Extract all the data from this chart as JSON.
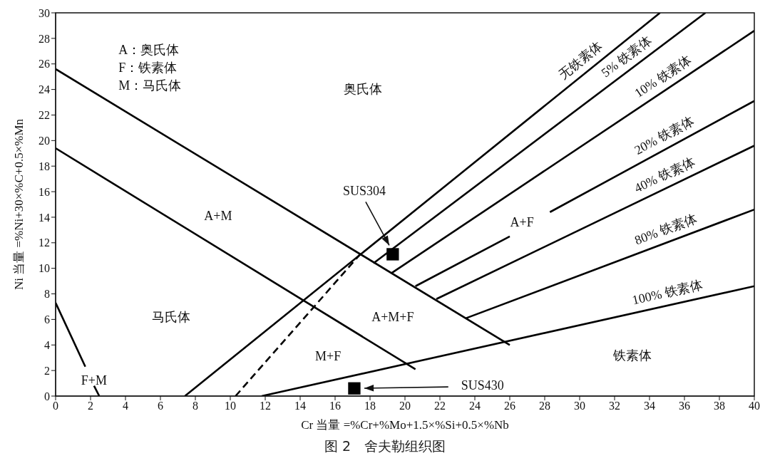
{
  "chart_data": {
    "type": "line",
    "title": "图 2　舍夫勒组织图",
    "xlabel": "Cr 当量 =%Cr+%Mo+1.5×%Si+0.5×%Nb",
    "ylabel": "Ni 当量 =%Ni+30×%C+0.5×%Mn",
    "xlim": [
      0,
      40
    ],
    "ylim": [
      0,
      30
    ],
    "xticks": [
      0,
      2,
      4,
      6,
      8,
      10,
      12,
      14,
      16,
      18,
      20,
      22,
      24,
      26,
      28,
      30,
      32,
      34,
      36,
      38,
      40
    ],
    "yticks": [
      0,
      2,
      4,
      6,
      8,
      10,
      12,
      14,
      16,
      18,
      20,
      22,
      24,
      26,
      28,
      30
    ],
    "series": [
      {
        "color": "#000000",
        "x": [
          0,
          26
        ],
        "values": [
          25.6,
          4
        ]
      },
      {
        "color": "#000000",
        "x": [
          0,
          20.6
        ],
        "values": [
          19.4,
          2.1
        ]
      },
      {
        "color": "#000000",
        "x": [
          0,
          1.7,
          2.0,
          2.2,
          2.5
        ],
        "values": [
          7.3,
          2.3,
          null,
          0.8,
          0
        ]
      },
      {
        "name": "无铁素体",
        "color": "#000000",
        "x": [
          7.4,
          34.6
        ],
        "values": [
          0,
          30
        ]
      },
      {
        "color": "#000000",
        "line_style": "dashed",
        "x": [
          10.3,
          17.5
        ],
        "values": [
          0,
          11.2
        ]
      },
      {
        "name": "5% 铁素体",
        "color": "#000000",
        "x": [
          18.2,
          37.2
        ],
        "values": [
          10.4,
          30
        ]
      },
      {
        "name": "10% 铁素体",
        "color": "#000000",
        "x": [
          19.2,
          40
        ],
        "values": [
          9.6,
          28.6
        ]
      },
      {
        "name": "20% 铁素体",
        "color": "#000000",
        "x": [
          20.6,
          26.0,
          27.2,
          28.3,
          40
        ],
        "values": [
          8.6,
          12.5,
          null,
          14.4,
          23.1
        ]
      },
      {
        "name": "40% 铁素体",
        "color": "#000000",
        "x": [
          21.8,
          40
        ],
        "values": [
          7.6,
          19.6
        ]
      },
      {
        "name": "80% 铁素体",
        "color": "#000000",
        "x": [
          23.5,
          40
        ],
        "values": [
          6.1,
          14.6
        ]
      },
      {
        "name": "100% 铁素体",
        "color": "#000000",
        "x": [
          11.8,
          40
        ],
        "values": [
          0,
          8.6
        ]
      },
      {
        "type": "scatter",
        "color": "#000000",
        "marker": "square",
        "x": [
          19.3
        ],
        "values": [
          11.1
        ]
      },
      {
        "type": "scatter",
        "color": "#000000",
        "marker": "square",
        "x": [
          17.1
        ],
        "values": [
          0.6
        ]
      }
    ],
    "annotations": [
      "A：奥氏体",
      "F：铁素体",
      "M：马氏体",
      "奥氏体",
      "A+M",
      "马氏体",
      "A+M+F",
      "M+F",
      "F+M",
      "A+F",
      "铁素体",
      {
        "text": "SUS304",
        "x": 19.1,
        "y": 11.8
      },
      "SUS430"
    ]
  }
}
